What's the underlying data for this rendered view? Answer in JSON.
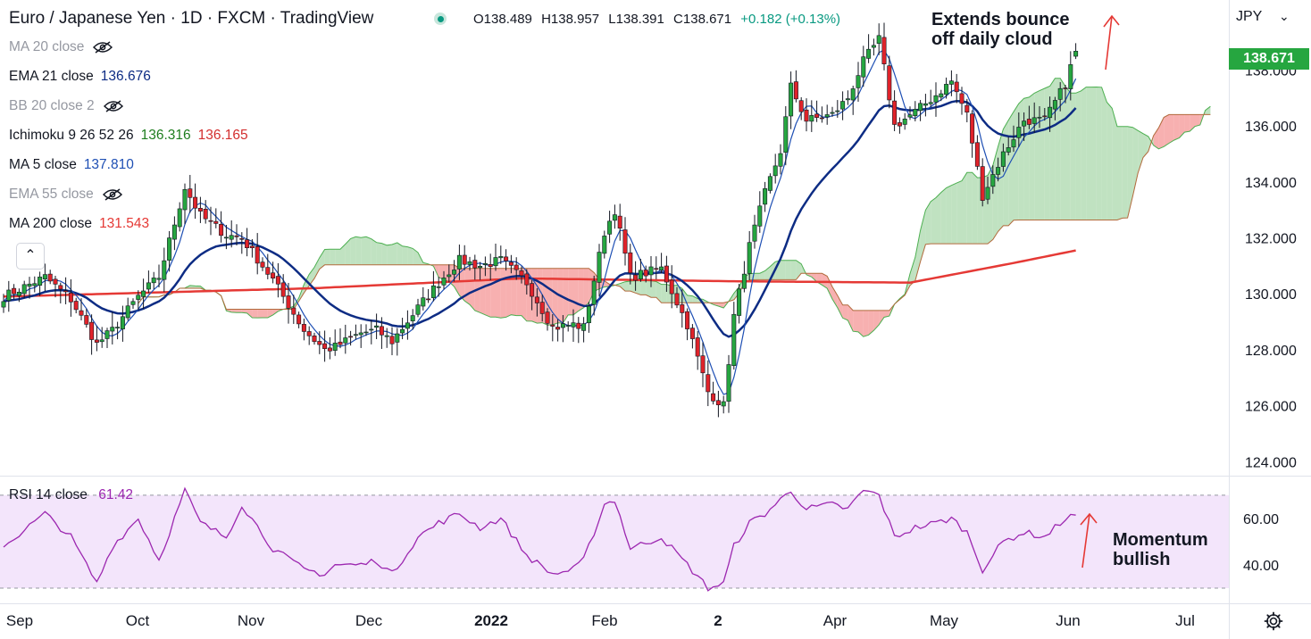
{
  "header": {
    "title": "Euro / Japanese Yen · 1D · FXCM · TradingView",
    "ohlc": {
      "o": "O138.489",
      "h": "H138.957",
      "l": "L138.391",
      "c": "C138.671",
      "chg": "+0.182 (+0.13%)"
    }
  },
  "indicators": [
    {
      "label": "MA 20 close",
      "value": "",
      "hidden": true,
      "color": "#9598a1"
    },
    {
      "label": "EMA 21 close",
      "value": "136.676",
      "hidden": false,
      "color": "#0d2c84"
    },
    {
      "label": "BB 20 close 2",
      "value": "",
      "hidden": true,
      "color": "#9598a1"
    },
    {
      "label": "Ichimoku 9 26 52 26",
      "value": "136.316",
      "value2": "136.165",
      "hidden": false,
      "color": "#1e7d1e",
      "color2": "#d32f2f"
    },
    {
      "label": "MA 5 close",
      "value": "137.810",
      "hidden": false,
      "color": "#1e4fb4"
    },
    {
      "label": "EMA 55 close",
      "value": "",
      "hidden": true,
      "color": "#9598a1"
    },
    {
      "label": "MA 200 close",
      "value": "131.543",
      "hidden": false,
      "color": "#e53935"
    }
  ],
  "price_axis": {
    "currency": "JPY",
    "last_price": "138.671"
  },
  "annotations": {
    "top": [
      "Extends bounce",
      "off daily cloud"
    ],
    "rsi": [
      "Momentum",
      "bullish"
    ]
  },
  "rsi_panel": {
    "label": "RSI 14 close",
    "value": "61.42"
  },
  "colors": {
    "up": "#26a640",
    "down": "#e0232a",
    "cloud_bull": "#a5d6a7",
    "cloud_bear": "#f48f8f",
    "rsi": "#9c27b0",
    "ma5": "#1e4fb4",
    "ema21": "#0d2c84",
    "ma200": "#e53935"
  },
  "chart_data": [
    {
      "type": "candlestick",
      "title": "Euro / Japanese Yen · 1D · FXCM · TradingView",
      "ylim": [
        123.5,
        140.5
      ],
      "yticks": [
        124,
        126,
        128,
        130,
        132,
        134,
        136,
        138
      ],
      "ytick_labels": [
        "124.000",
        "126.000",
        "128.000",
        "130.000",
        "132.000",
        "134.000",
        "136.000",
        "138.000"
      ],
      "xtick_labels": [
        "Sep",
        "Oct",
        "Nov",
        "Dec",
        "2022",
        "Feb",
        "2",
        "Apr",
        "May",
        "Jun",
        "Jul"
      ],
      "close_keypoints": [
        [
          0,
          129.9
        ],
        [
          8,
          130.6
        ],
        [
          13,
          129.8
        ],
        [
          18,
          128.2
        ],
        [
          21,
          128.7
        ],
        [
          26,
          129.9
        ],
        [
          30,
          130.6
        ],
        [
          35,
          133.8
        ],
        [
          38,
          132.8
        ],
        [
          43,
          132.1
        ],
        [
          46,
          132.0
        ],
        [
          52,
          130.5
        ],
        [
          58,
          128.7
        ],
        [
          62,
          128.0
        ],
        [
          64,
          128.1
        ],
        [
          69,
          128.6
        ],
        [
          72,
          128.7
        ],
        [
          75,
          128.3
        ],
        [
          80,
          129.5
        ],
        [
          84,
          130.4
        ],
        [
          88,
          131.2
        ],
        [
          92,
          131.0
        ],
        [
          96,
          131.2
        ],
        [
          101,
          130.4
        ],
        [
          106,
          128.8
        ],
        [
          110,
          128.9
        ],
        [
          112,
          128.8
        ],
        [
          116,
          132.2
        ],
        [
          118,
          133.0
        ],
        [
          121,
          130.6
        ],
        [
          127,
          130.9
        ],
        [
          132,
          128.9
        ],
        [
          136,
          126.5
        ],
        [
          139,
          126.0
        ],
        [
          141,
          129.2
        ],
        [
          144,
          131.7
        ],
        [
          147,
          133.6
        ],
        [
          150,
          135.1
        ],
        [
          152,
          137.4
        ],
        [
          155,
          136.2
        ],
        [
          160,
          136.4
        ],
        [
          163,
          137.0
        ],
        [
          166,
          138.3
        ],
        [
          169,
          139.1
        ],
        [
          172,
          136.0
        ],
        [
          176,
          136.5
        ],
        [
          180,
          137.1
        ],
        [
          183,
          137.6
        ],
        [
          186,
          136.4
        ],
        [
          189,
          133.5
        ],
        [
          193,
          135.0
        ],
        [
          197,
          136.2
        ],
        [
          201,
          136.2
        ],
        [
          205,
          137.5
        ],
        [
          207,
          138.7
        ]
      ],
      "ma200_keypoints": [
        [
          0,
          129.9
        ],
        [
          60,
          130.2
        ],
        [
          100,
          130.55
        ],
        [
          140,
          130.45
        ],
        [
          175,
          130.4
        ],
        [
          195,
          131.1
        ],
        [
          207,
          131.55
        ]
      ],
      "ichimoku": {
        "tenkan_last": 136.316,
        "kijun_last": 136.165
      },
      "last": {
        "open": 138.489,
        "high": 138.957,
        "low": 138.391,
        "close": 138.671,
        "change": 0.182,
        "change_pct": 0.13
      }
    },
    {
      "type": "line",
      "title": "RSI 14 close",
      "ylim": [
        25,
        78
      ],
      "yticks": [
        40,
        60
      ],
      "ytick_labels": [
        "40.00",
        "60.00"
      ],
      "bands": [
        30,
        70
      ],
      "keypoints": [
        [
          0,
          48
        ],
        [
          8,
          62
        ],
        [
          13,
          52
        ],
        [
          18,
          32
        ],
        [
          21,
          48
        ],
        [
          26,
          60
        ],
        [
          30,
          42
        ],
        [
          35,
          72
        ],
        [
          38,
          58
        ],
        [
          43,
          52
        ],
        [
          46,
          66
        ],
        [
          52,
          47
        ],
        [
          58,
          38
        ],
        [
          62,
          36
        ],
        [
          64,
          40
        ],
        [
          69,
          40
        ],
        [
          72,
          42
        ],
        [
          75,
          36
        ],
        [
          80,
          52
        ],
        [
          84,
          58
        ],
        [
          88,
          62
        ],
        [
          92,
          56
        ],
        [
          96,
          60
        ],
        [
          101,
          44
        ],
        [
          106,
          36
        ],
        [
          110,
          38
        ],
        [
          112,
          42
        ],
        [
          116,
          66
        ],
        [
          118,
          68
        ],
        [
          121,
          47
        ],
        [
          127,
          52
        ],
        [
          132,
          40
        ],
        [
          136,
          30
        ],
        [
          139,
          32
        ],
        [
          141,
          48
        ],
        [
          144,
          58
        ],
        [
          147,
          62
        ],
        [
          150,
          68
        ],
        [
          152,
          72
        ],
        [
          155,
          64
        ],
        [
          160,
          66
        ],
        [
          163,
          64
        ],
        [
          166,
          72
        ],
        [
          169,
          70
        ],
        [
          172,
          52
        ],
        [
          176,
          56
        ],
        [
          180,
          58
        ],
        [
          183,
          60
        ],
        [
          186,
          54
        ],
        [
          189,
          38
        ],
        [
          193,
          50
        ],
        [
          197,
          54
        ],
        [
          201,
          52
        ],
        [
          205,
          60
        ],
        [
          207,
          61.42
        ]
      ]
    }
  ]
}
